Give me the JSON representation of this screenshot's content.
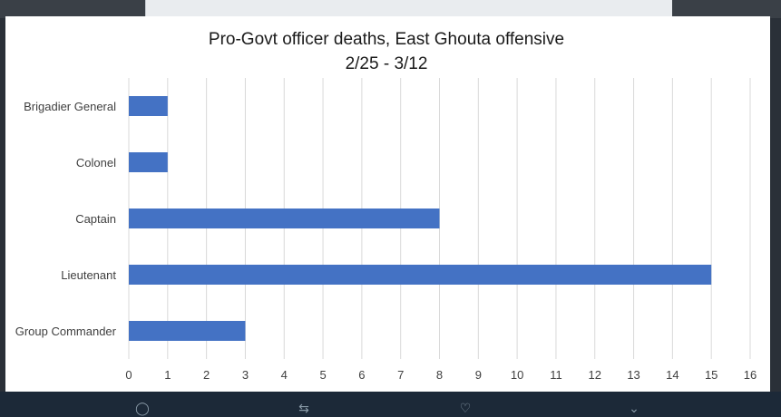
{
  "chart_data": {
    "type": "bar",
    "orientation": "horizontal",
    "title": "Pro-Govt officer deaths, East Ghouta offensive",
    "subtitle": "2/25 - 3/12",
    "categories": [
      "Brigadier General",
      "Colonel",
      "Captain",
      "Lieutenant",
      "Group Commander"
    ],
    "values": [
      1,
      1,
      8,
      15,
      3
    ],
    "xlim": [
      0,
      16
    ],
    "xticks": [
      0,
      1,
      2,
      3,
      4,
      5,
      6,
      7,
      8,
      9,
      10,
      11,
      12,
      13,
      14,
      15,
      16
    ],
    "grid": true,
    "bar_color": "#4472c4"
  },
  "colors": {
    "background": "#ffffff",
    "gridline": "#d9d9d9",
    "text": "#404040",
    "action_bar": "#1c2938"
  },
  "actions": [
    {
      "icon": "reply-icon"
    },
    {
      "icon": "retweet-icon"
    },
    {
      "icon": "like-icon"
    },
    {
      "icon": "share-icon"
    }
  ]
}
